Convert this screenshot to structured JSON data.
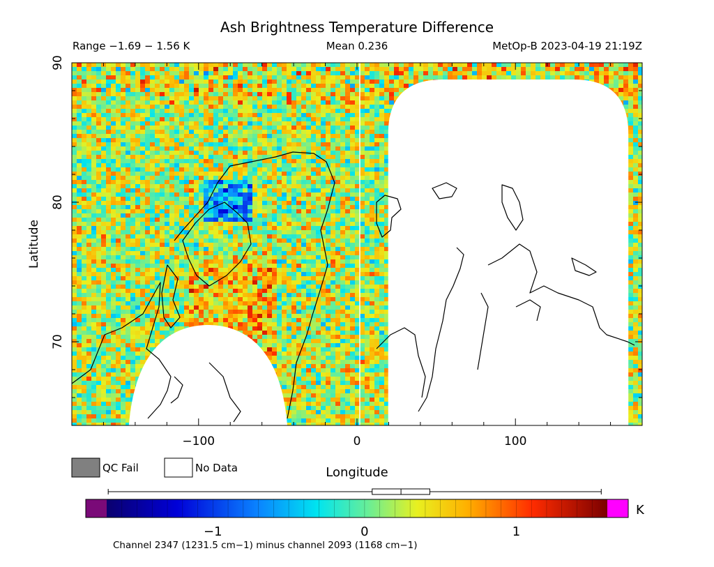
{
  "chart_data": {
    "type": "heatmap",
    "title": "Ash Brightness Temperature Difference",
    "subtitle_left": "Range −1.69 − 1.56 K",
    "subtitle_center": "Mean 0.236",
    "subtitle_right": "MetOp-B 2023-04-19 21:19Z",
    "xlabel": "Longitude",
    "ylabel": "Latitude",
    "xlim": [
      -180,
      180
    ],
    "ylim": [
      64,
      90
    ],
    "x_ticks": [
      -100,
      0,
      100
    ],
    "x_tick_labels": [
      "−100",
      "0",
      "100"
    ],
    "y_ticks": [
      70,
      80,
      90
    ],
    "y_tick_labels": [
      "70",
      "80",
      "90"
    ],
    "range_min": -1.69,
    "range_max": 1.56,
    "mean": 0.236,
    "units": "K",
    "legend": [
      {
        "label": "QC Fail",
        "color": "#808080"
      },
      {
        "label": "No Data",
        "color": "#ffffff"
      }
    ],
    "colorbar": {
      "min": -1.7,
      "max": 1.6,
      "ticks": [
        -1,
        0,
        1
      ],
      "tick_labels": [
        "−1",
        "0",
        "1"
      ],
      "units_label": "K",
      "under_color": "#7a0a78",
      "over_color": "#ff00ff",
      "boxplot": {
        "whisker_low": -1.69,
        "q1": 0.05,
        "median": 0.24,
        "q3": 0.43,
        "whisker_high": 1.56
      }
    },
    "footnote": "Channel 2347 (1231.5 cm−1) minus channel 2093 (1168 cm−1)",
    "no_data_regions": [
      {
        "name": "east-swath-gap",
        "lon_range": [
          10,
          177
        ],
        "lat_top": 88.8
      },
      {
        "name": "southern-gap",
        "lon_center": -94,
        "lon_half_width": 50,
        "lat_peak": 71.2
      }
    ]
  }
}
